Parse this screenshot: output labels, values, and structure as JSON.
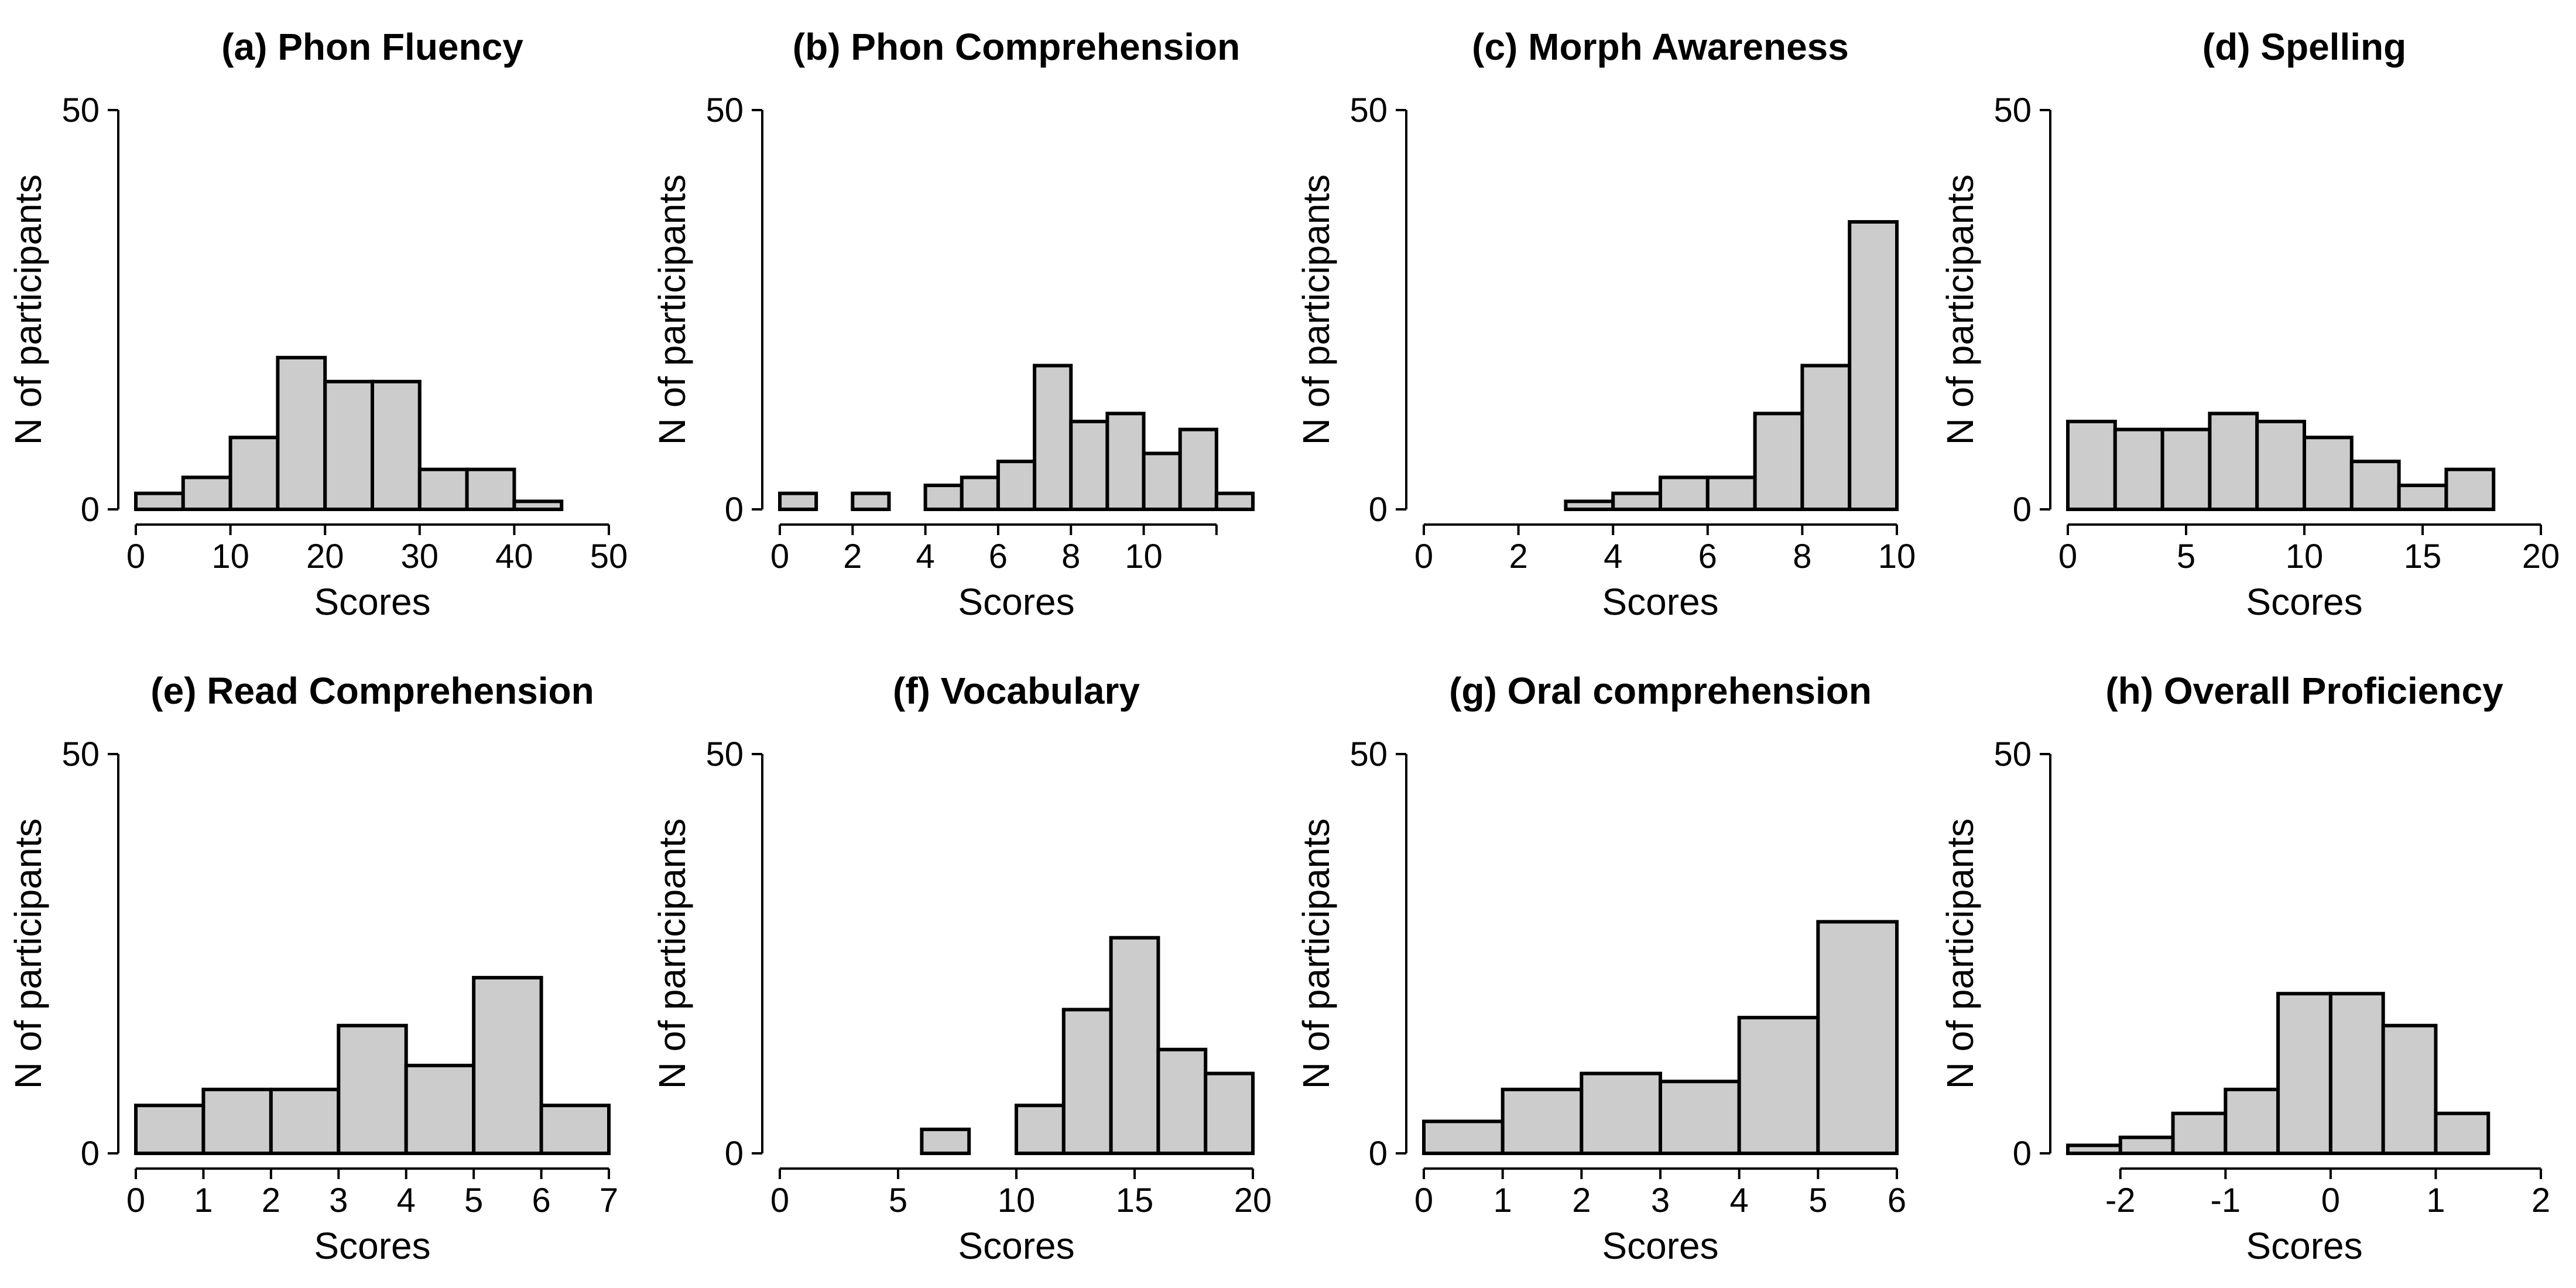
{
  "figure": {
    "bar_color": "#cccccc",
    "edge_color": "#000000"
  },
  "chart_data": [
    {
      "type": "bar",
      "title": "(a) Phon Fluency",
      "xlabel": "Scores",
      "ylabel": "N of participants",
      "xlim": [
        0,
        50
      ],
      "ylim": [
        0,
        50
      ],
      "xticks": [
        0,
        10,
        20,
        30,
        40,
        50
      ],
      "xtick_labels": [
        "0",
        "10",
        "20",
        "30",
        "40",
        "50"
      ],
      "yticks": [
        0,
        50
      ],
      "ytick_labels": [
        "0",
        "50"
      ],
      "bins": [
        [
          0,
          5
        ],
        [
          5,
          10
        ],
        [
          10,
          15
        ],
        [
          15,
          20
        ],
        [
          20,
          25
        ],
        [
          25,
          30
        ],
        [
          30,
          35
        ],
        [
          35,
          40
        ],
        [
          40,
          45
        ]
      ],
      "values": [
        2,
        4,
        9,
        19,
        16,
        16,
        5,
        5,
        1
      ]
    },
    {
      "type": "bar",
      "title": "(b) Phon Comprehension",
      "xlabel": "Scores",
      "ylabel": "N of participants",
      "xlim": [
        0,
        13
      ],
      "ylim": [
        0,
        50
      ],
      "xticks": [
        0,
        2,
        4,
        6,
        8,
        10,
        12
      ],
      "xtick_labels": [
        "0",
        "2",
        "4",
        "6",
        "8",
        "10",
        ""
      ],
      "yticks": [
        0,
        50
      ],
      "ytick_labels": [
        "0",
        "50"
      ],
      "bins": [
        [
          0,
          1
        ],
        [
          1,
          2
        ],
        [
          2,
          3
        ],
        [
          3,
          4
        ],
        [
          4,
          5
        ],
        [
          5,
          6
        ],
        [
          6,
          7
        ],
        [
          7,
          8
        ],
        [
          8,
          9
        ],
        [
          9,
          10
        ],
        [
          10,
          11
        ],
        [
          11,
          12
        ],
        [
          12,
          13
        ]
      ],
      "values": [
        2,
        0,
        2,
        0,
        3,
        4,
        6,
        18,
        11,
        12,
        7,
        10,
        2
      ]
    },
    {
      "type": "bar",
      "title": "(c) Morph Awareness",
      "xlabel": "Scores",
      "ylabel": "N of participants",
      "xlim": [
        0,
        10
      ],
      "ylim": [
        0,
        50
      ],
      "xticks": [
        0,
        2,
        4,
        6,
        8,
        10
      ],
      "xtick_labels": [
        "0",
        "2",
        "4",
        "6",
        "8",
        "10"
      ],
      "yticks": [
        0,
        50
      ],
      "ytick_labels": [
        "0",
        "50"
      ],
      "bins": [
        [
          0,
          1
        ],
        [
          1,
          2
        ],
        [
          2,
          3
        ],
        [
          3,
          4
        ],
        [
          4,
          5
        ],
        [
          5,
          6
        ],
        [
          6,
          7
        ],
        [
          7,
          8
        ],
        [
          8,
          9
        ],
        [
          9,
          10
        ]
      ],
      "values": [
        0,
        0,
        0,
        1,
        2,
        4,
        4,
        12,
        18,
        36
      ]
    },
    {
      "type": "bar",
      "title": "(d) Spelling",
      "xlabel": "Scores",
      "ylabel": "N of participants",
      "xlim": [
        0,
        20
      ],
      "ylim": [
        0,
        50
      ],
      "xticks": [
        0,
        5,
        10,
        15,
        20
      ],
      "xtick_labels": [
        "0",
        "5",
        "10",
        "15",
        "20"
      ],
      "yticks": [
        0,
        50
      ],
      "ytick_labels": [
        "0",
        "50"
      ],
      "bins": [
        [
          0,
          2
        ],
        [
          2,
          4
        ],
        [
          4,
          6
        ],
        [
          6,
          8
        ],
        [
          8,
          10
        ],
        [
          10,
          12
        ],
        [
          12,
          14
        ],
        [
          14,
          16
        ],
        [
          16,
          18
        ]
      ],
      "values": [
        11,
        10,
        10,
        12,
        11,
        9,
        6,
        3,
        5
      ]
    },
    {
      "type": "bar",
      "title": "(e) Read Comprehension",
      "xlabel": "Scores",
      "ylabel": "N of participants",
      "xlim": [
        0,
        7
      ],
      "ylim": [
        0,
        50
      ],
      "xticks": [
        0,
        1,
        2,
        3,
        4,
        5,
        6,
        7
      ],
      "xtick_labels": [
        "0",
        "1",
        "2",
        "3",
        "4",
        "5",
        "6",
        "7"
      ],
      "yticks": [
        0,
        50
      ],
      "ytick_labels": [
        "0",
        "50"
      ],
      "bins": [
        [
          0,
          1
        ],
        [
          1,
          2
        ],
        [
          2,
          3
        ],
        [
          3,
          4
        ],
        [
          4,
          5
        ],
        [
          5,
          6
        ],
        [
          6,
          7
        ]
      ],
      "values": [
        6,
        8,
        8,
        16,
        11,
        22,
        6
      ]
    },
    {
      "type": "bar",
      "title": "(f) Vocabulary",
      "xlabel": "Scores",
      "ylabel": "N of participants",
      "xlim": [
        0,
        20
      ],
      "ylim": [
        0,
        50
      ],
      "xticks": [
        0,
        5,
        10,
        15,
        20
      ],
      "xtick_labels": [
        "0",
        "5",
        "10",
        "15",
        "20"
      ],
      "yticks": [
        0,
        50
      ],
      "ytick_labels": [
        "0",
        "50"
      ],
      "bins": [
        [
          0,
          2
        ],
        [
          2,
          4
        ],
        [
          4,
          6
        ],
        [
          6,
          8
        ],
        [
          8,
          10
        ],
        [
          10,
          12
        ],
        [
          12,
          14
        ],
        [
          14,
          16
        ],
        [
          16,
          18
        ],
        [
          18,
          20
        ]
      ],
      "values": [
        0,
        0,
        0,
        3,
        0,
        6,
        18,
        27,
        13,
        10
      ]
    },
    {
      "type": "bar",
      "title": "(g) Oral comprehension",
      "xlabel": "Scores",
      "ylabel": "N of participants",
      "xlim": [
        0,
        6
      ],
      "ylim": [
        0,
        50
      ],
      "xticks": [
        0,
        1,
        2,
        3,
        4,
        5,
        6
      ],
      "xtick_labels": [
        "0",
        "1",
        "2",
        "3",
        "4",
        "5",
        "6"
      ],
      "yticks": [
        0,
        50
      ],
      "ytick_labels": [
        "0",
        "50"
      ],
      "bins": [
        [
          0,
          1
        ],
        [
          1,
          2
        ],
        [
          2,
          3
        ],
        [
          3,
          4
        ],
        [
          4,
          5
        ],
        [
          5,
          6
        ]
      ],
      "values": [
        4,
        8,
        10,
        9,
        17,
        29
      ]
    },
    {
      "type": "bar",
      "title": "(h) Overall Proficiency",
      "xlabel": "Scores",
      "ylabel": "N of participants",
      "xlim": [
        -2.5,
        2
      ],
      "ylim": [
        0,
        50
      ],
      "xticks": [
        -2,
        -1,
        0,
        1,
        2
      ],
      "xtick_labels": [
        "-2",
        "-1",
        "0",
        "1",
        "2"
      ],
      "yticks": [
        0,
        50
      ],
      "ytick_labels": [
        "0",
        "50"
      ],
      "bins": [
        [
          -2.5,
          -2
        ],
        [
          -2,
          -1.5
        ],
        [
          -1.5,
          -1
        ],
        [
          -1,
          -0.5
        ],
        [
          -0.5,
          0
        ],
        [
          0,
          0.5
        ],
        [
          0.5,
          1
        ],
        [
          1,
          1.5
        ]
      ],
      "values": [
        1,
        2,
        5,
        8,
        20,
        20,
        16,
        5
      ]
    }
  ]
}
